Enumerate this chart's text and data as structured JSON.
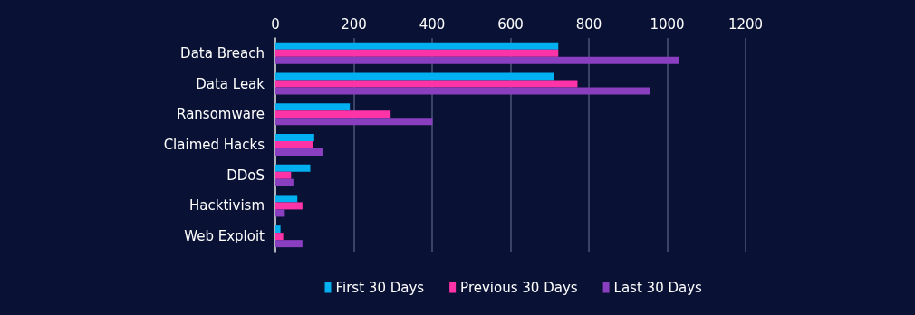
{
  "chart_data": {
    "type": "bar",
    "orientation": "horizontal",
    "categories": [
      "Data Breach",
      "Data Leak",
      "Ransomware",
      "Claimed Hacks",
      "DDoS",
      "Hacktivism",
      "Web Exploit"
    ],
    "series": [
      {
        "name": "First 30 Days",
        "color": "#00b0f0",
        "values": [
          722,
          712,
          190,
          99,
          89,
          56,
          13
        ]
      },
      {
        "name": "Previous 30 Days",
        "color": "#ff33a8",
        "values": [
          722,
          771,
          294,
          95,
          40,
          69,
          20
        ]
      },
      {
        "name": "Last 30 Days",
        "color": "#8a3fc0",
        "values": [
          1031,
          957,
          401,
          122,
          46,
          24,
          69
        ]
      }
    ],
    "xlim": [
      0,
      1200
    ],
    "xticks": [
      0,
      200,
      400,
      600,
      800,
      1000,
      1200
    ],
    "grid": "x",
    "legend": "bottom"
  }
}
